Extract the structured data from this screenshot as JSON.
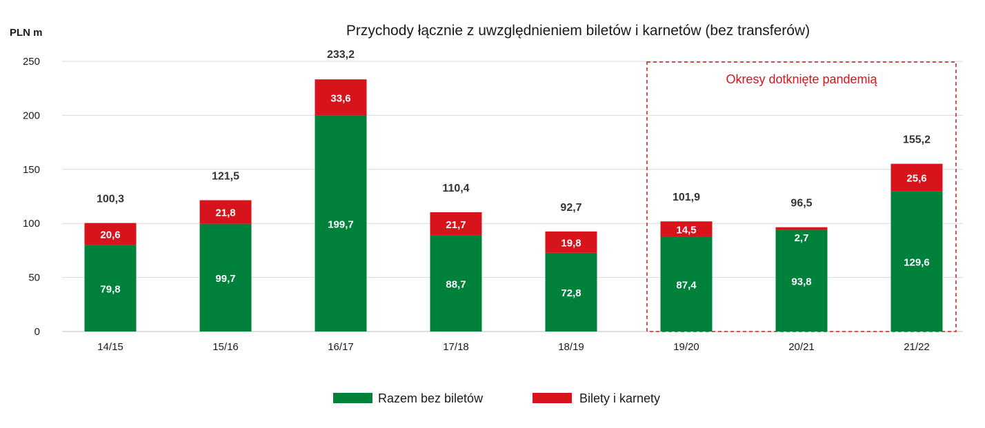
{
  "chart_data": {
    "type": "bar",
    "stacked": true,
    "title": "Przychody łącznie z uwzględnieniem biletów i karnetów (bez transferów)",
    "ylabel": "PLN m",
    "xlabel": "",
    "ylim": [
      0,
      250
    ],
    "yticks": [
      "0",
      "50",
      "100",
      "150",
      "200",
      "250"
    ],
    "grid": true,
    "legend_position": "bottom",
    "categories": [
      "14/15",
      "15/16",
      "16/17",
      "17/18",
      "18/19",
      "19/20",
      "20/21",
      "21/22"
    ],
    "series": [
      {
        "name": "Razem bez biletów",
        "color": "#00813b",
        "values": [
          79.8,
          99.7,
          199.7,
          88.7,
          72.8,
          87.4,
          93.8,
          129.6
        ],
        "labels": [
          "79,8",
          "99,7",
          "199,7",
          "88,7",
          "72,8",
          "87,4",
          "93,8",
          "129,6"
        ]
      },
      {
        "name": "Bilety i karnety",
        "color": "#d7141b",
        "values": [
          20.6,
          21.8,
          33.6,
          21.7,
          19.8,
          14.5,
          2.7,
          25.6
        ],
        "labels": [
          "20,6",
          "21,8",
          "33,6",
          "21,7",
          "19,8",
          "14,5",
          "2,7",
          "25,6"
        ]
      }
    ],
    "totals": [
      100.3,
      121.5,
      233.2,
      110.4,
      92.7,
      101.9,
      96.5,
      155.2
    ],
    "total_labels": [
      "100,3",
      "121,5",
      "233,2",
      "110,4",
      "92,7",
      "101,9",
      "96,5",
      "155,2"
    ],
    "annotation": {
      "text": "Okresy dotknięte pandemią",
      "range": [
        "19/20",
        "21/22"
      ],
      "color": "#d7141b"
    }
  }
}
